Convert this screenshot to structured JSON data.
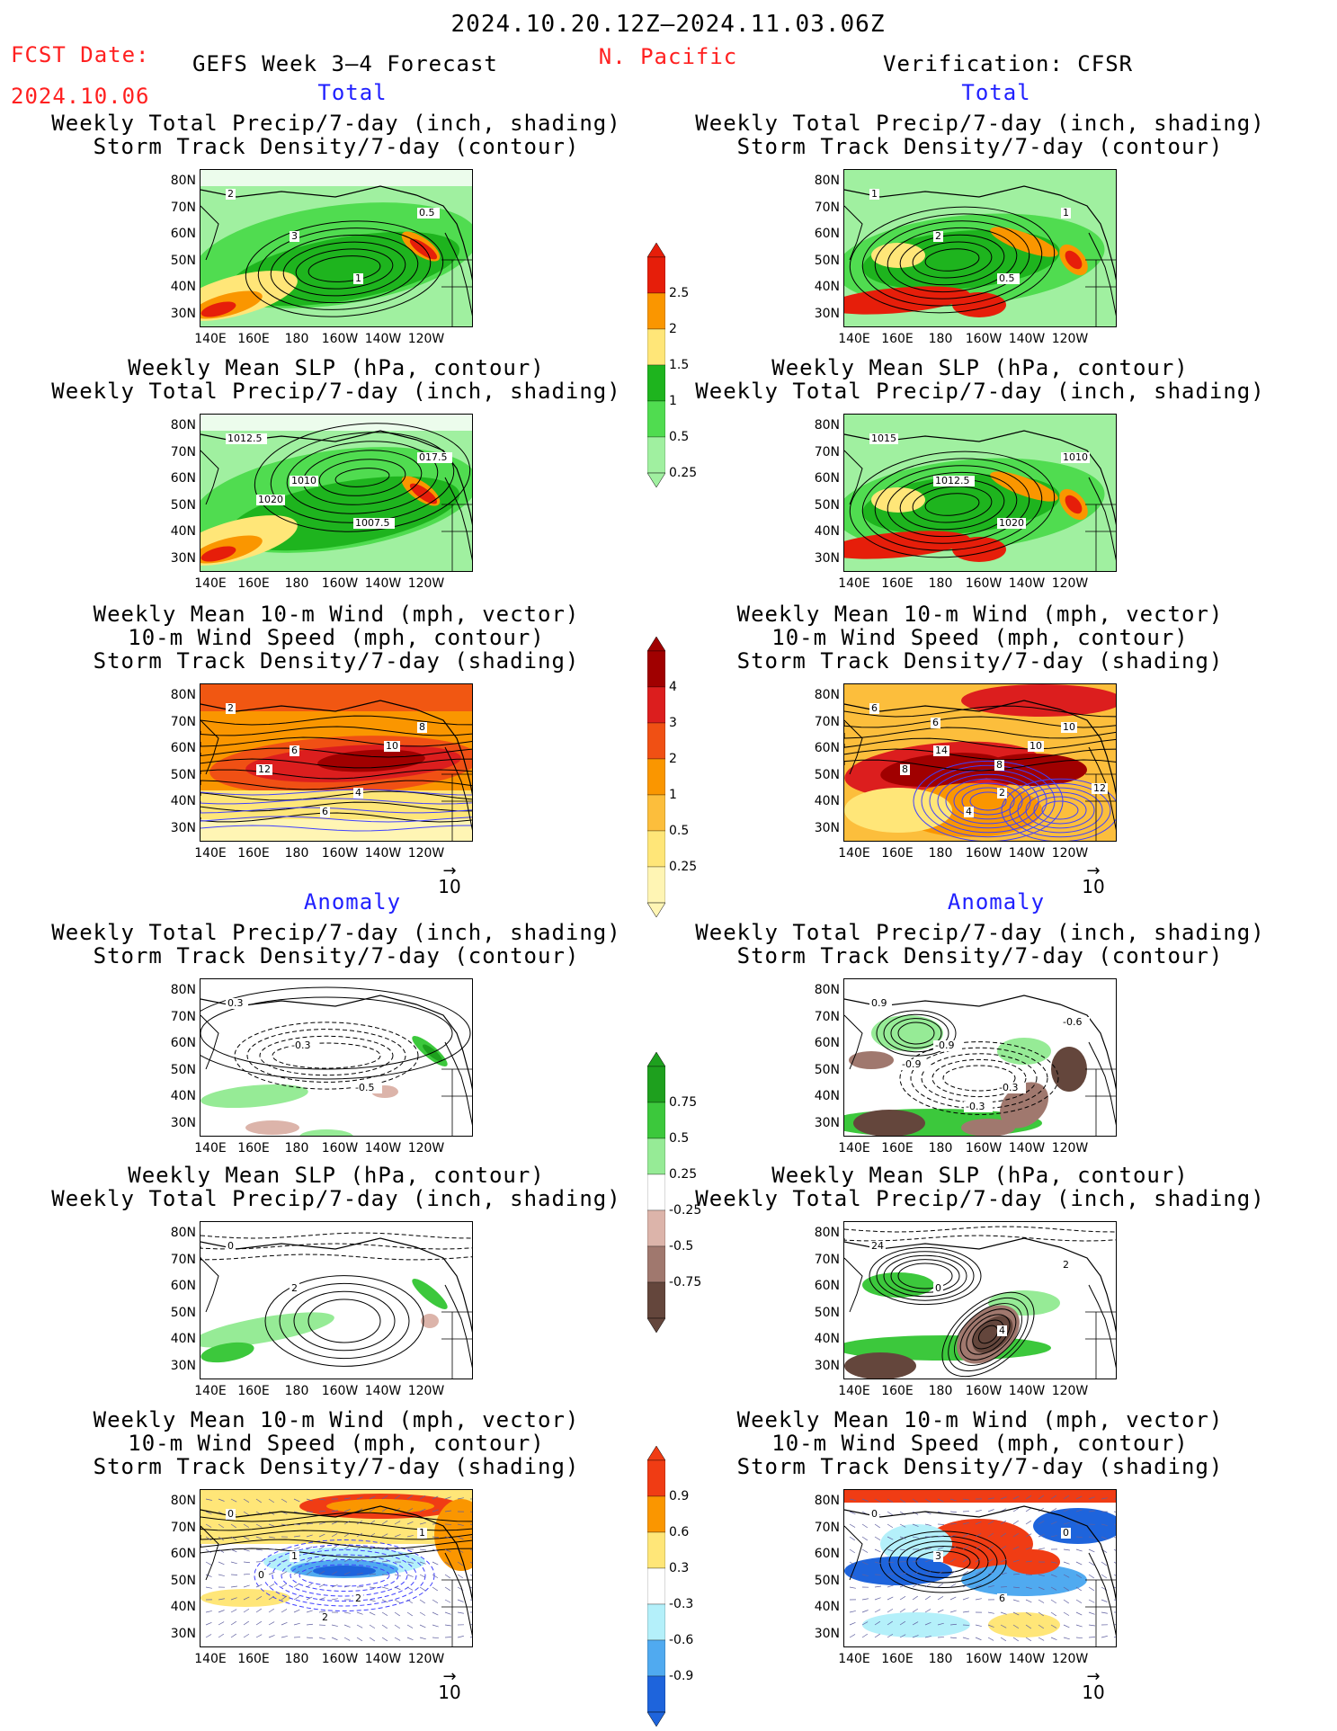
{
  "header": {
    "date_range": "2024.10.20.12Z–2024.11.03.06Z",
    "fcst_label": "FCST Date:",
    "fcst_date": "2024.10.06",
    "forecast_title": "GEFS Week 3–4 Forecast",
    "region": "N. Pacific",
    "verification": "Verification: CFSR"
  },
  "sections": {
    "total": "Total",
    "anomaly": "Anomaly"
  },
  "axes": {
    "lat_labels": [
      "80N",
      "70N",
      "60N",
      "50N",
      "40N",
      "30N"
    ],
    "lon_labels": [
      "140E",
      "160E",
      "180",
      "160W",
      "140W",
      "120W"
    ]
  },
  "panels": [
    {
      "id": "p1",
      "title1": "Weekly Total Precip/7-day (inch, shading)",
      "title2": "Storm Track Density/7-day (contour)",
      "title3": "",
      "style": "precip_total",
      "labels": [
        "2",
        "3",
        "1",
        "0.5"
      ]
    },
    {
      "id": "p2",
      "title1": "Weekly Total Precip/7-day (inch, shading)",
      "title2": "Storm Track Density/7-day (contour)",
      "title3": "",
      "style": "precip_total_obs",
      "labels": [
        "1",
        "2",
        "0.5",
        "1"
      ]
    },
    {
      "id": "p3",
      "title1": "Weekly Mean SLP (hPa, contour)",
      "title2": "Weekly Total Precip/7-day (inch, shading)",
      "title3": "",
      "style": "slp_total",
      "labels": [
        "1012.5",
        "1010",
        "1007.5",
        "017.5",
        "1020"
      ]
    },
    {
      "id": "p4",
      "title1": "Weekly Mean SLP (hPa, contour)",
      "title2": "Weekly Total Precip/7-day (inch, shading)",
      "title3": "",
      "style": "slp_total_obs",
      "labels": [
        "1015",
        "1012.5",
        "1020",
        "1010"
      ]
    },
    {
      "id": "p5",
      "title1": "Weekly Mean 10-m Wind (mph, vector)",
      "title2": "10-m Wind Speed (mph, contour)",
      "title3": "Storm Track Density/7-day (shading)",
      "style": "wind_total",
      "labels": [
        "2",
        "6",
        "4",
        "8",
        "12",
        "6",
        "10"
      ]
    },
    {
      "id": "p6",
      "title1": "Weekly Mean 10-m Wind (mph, vector)",
      "title2": "10-m Wind Speed (mph, contour)",
      "title3": "Storm Track Density/7-day (shading)",
      "style": "wind_total_obs",
      "labels": [
        "6",
        "14",
        "2",
        "10",
        "8",
        "4",
        "10",
        "12",
        "6",
        "8"
      ]
    },
    {
      "id": "p7",
      "title1": "Weekly Total Precip/7-day (inch, shading)",
      "title2": "Storm Track Density/7-day (contour)",
      "title3": "",
      "style": "precip_anom",
      "labels": [
        "0.3",
        "-0.3",
        "-0.5"
      ]
    },
    {
      "id": "p8",
      "title1": "Weekly Total Precip/7-day (inch, shading)",
      "title2": "Storm Track Density/7-day (contour)",
      "title3": "",
      "style": "precip_anom_obs",
      "labels": [
        "0.9",
        "-0.9",
        "-0.3",
        "-0.6",
        "-0.9",
        "-0.3"
      ]
    },
    {
      "id": "p9",
      "title1": "Weekly Mean SLP (hPa, contour)",
      "title2": "Weekly Total Precip/7-day (inch, shading)",
      "title3": "",
      "style": "slp_anom",
      "labels": [
        "0",
        "2"
      ]
    },
    {
      "id": "p10",
      "title1": "Weekly Mean SLP (hPa, contour)",
      "title2": "Weekly Total Precip/7-day (inch, shading)",
      "title3": "",
      "style": "slp_anom_obs",
      "labels": [
        "24",
        "0",
        "4",
        "2"
      ]
    },
    {
      "id": "p11",
      "title1": "Weekly Mean 10-m Wind (mph, vector)",
      "title2": "10-m Wind Speed (mph, contour)",
      "title3": "Storm Track Density/7-day (shading)",
      "style": "wind_anom",
      "labels": [
        "0",
        "1",
        "2",
        "1",
        "0",
        "2"
      ]
    },
    {
      "id": "p12",
      "title1": "Weekly Mean 10-m Wind (mph, vector)",
      "title2": "10-m Wind Speed (mph, contour)",
      "title3": "Storm Track Density/7-day (shading)",
      "style": "wind_anom_obs",
      "labels": [
        "0",
        "3",
        "6",
        "0"
      ]
    }
  ],
  "colorbars": [
    {
      "id": "cb1",
      "labels": [
        "2.5",
        "2",
        "1.5",
        "1",
        "0.5",
        "0.25"
      ],
      "colors": [
        "#e61e0a",
        "#fa9600",
        "#ffe678",
        "#1eb41e",
        "#50dc50",
        "#a0f0a0"
      ]
    },
    {
      "id": "cb2",
      "labels": [
        "4",
        "3",
        "2",
        "1",
        "0.5",
        "0.25"
      ],
      "colors": [
        "#a00000",
        "#dc1e1e",
        "#f05014",
        "#fa9600",
        "#fcbe3c",
        "#ffe678",
        "#fff5b4"
      ]
    },
    {
      "id": "cb3",
      "labels": [
        "0.75",
        "0.5",
        "0.25",
        "-0.25",
        "-0.5",
        "-0.75"
      ],
      "colors": [
        "#1ea01e",
        "#3cc83c",
        "#96eb96",
        "#ffffff",
        "#dcb4aa",
        "#a0786e",
        "#64463c"
      ]
    },
    {
      "id": "cb4",
      "labels": [
        "0.9",
        "0.6",
        "0.3",
        "-0.3",
        "-0.6",
        "-0.9"
      ],
      "colors": [
        "#f03c14",
        "#fa9600",
        "#ffe678",
        "#ffffff",
        "#b4f0fa",
        "#50aaf0",
        "#1e64dc"
      ]
    }
  ],
  "vector_ref": "10"
}
